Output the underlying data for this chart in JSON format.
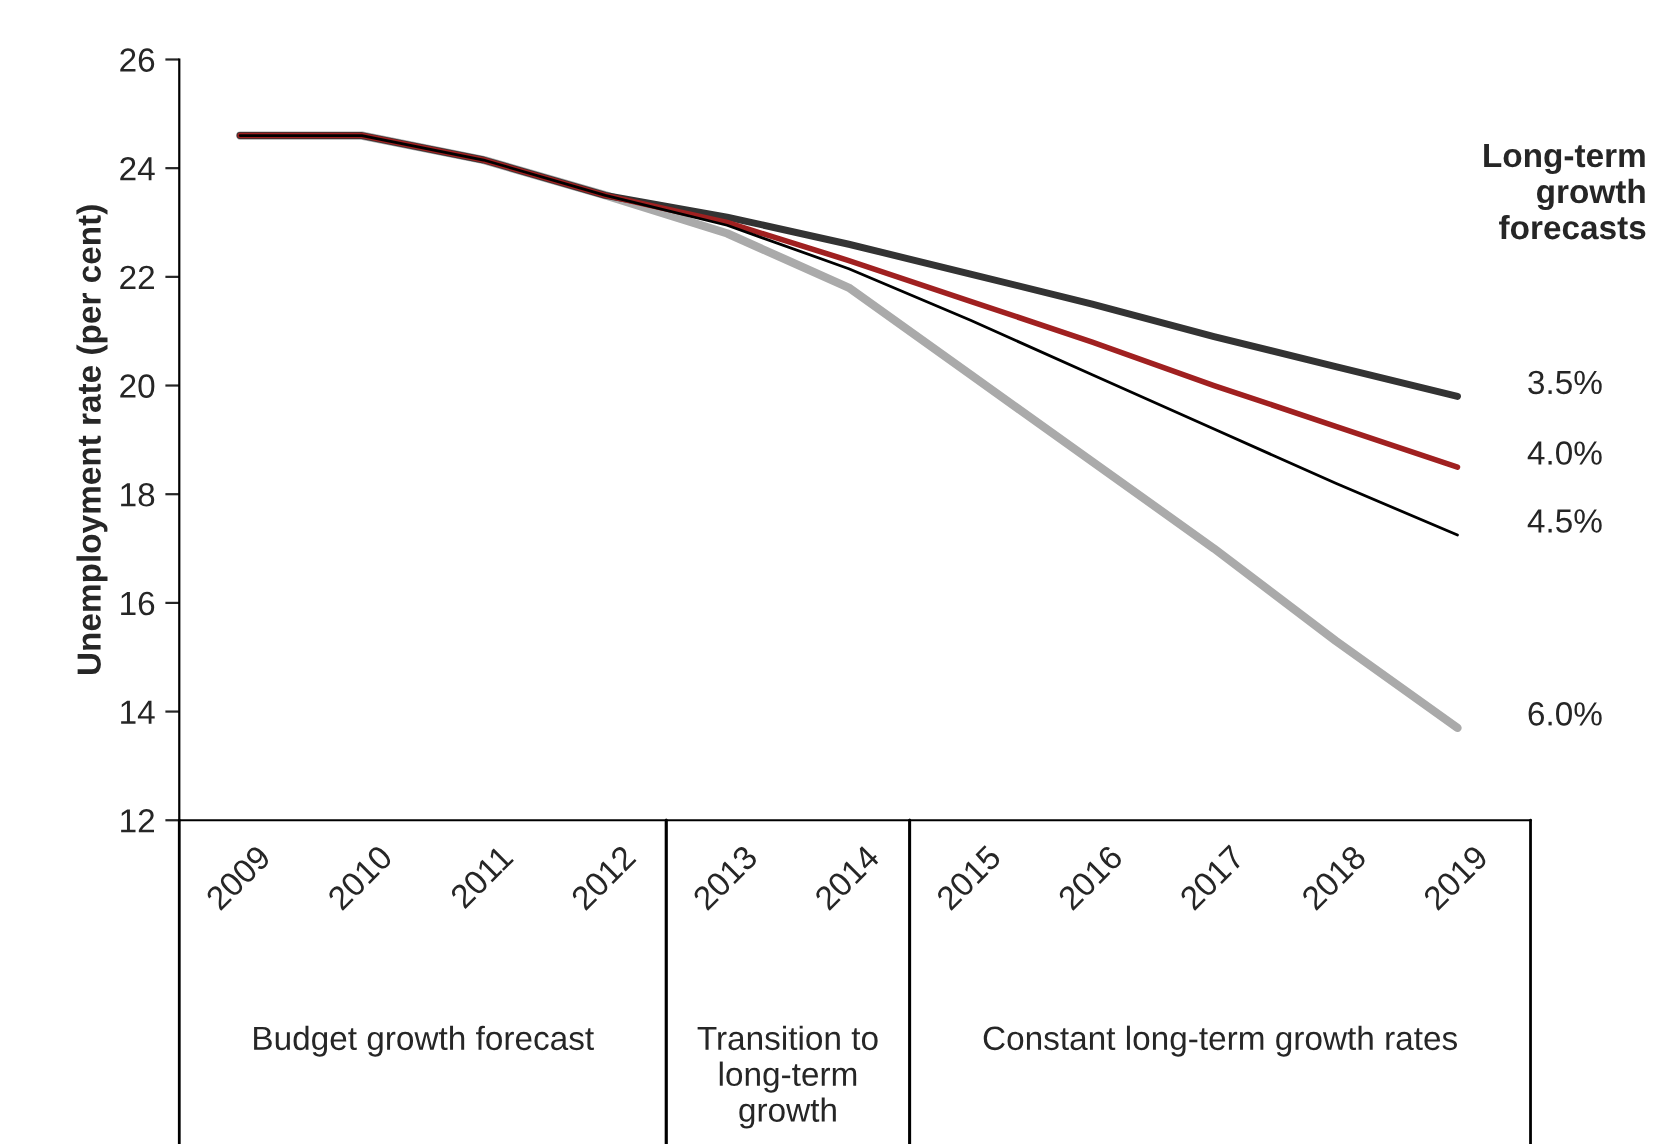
{
  "chart_data": {
    "type": "line",
    "ylabel": "Unemployment rate (per cent)",
    "legend_title": "Long-term growth forecasts",
    "categories": [
      "2009",
      "2010",
      "2011",
      "2012",
      "2013",
      "2014",
      "2015",
      "2016",
      "2017",
      "2018",
      "2019"
    ],
    "series": [
      {
        "name": "3.5%",
        "color": "#333333",
        "values": [
          24.6,
          24.6,
          24.15,
          23.5,
          23.1,
          22.6,
          22.05,
          21.5,
          20.9,
          20.35,
          19.8
        ]
      },
      {
        "name": "4.0%",
        "color": "#a02020",
        "values": [
          24.6,
          24.6,
          24.15,
          23.5,
          23.0,
          22.3,
          21.55,
          20.8,
          20.0,
          19.25,
          18.5
        ]
      },
      {
        "name": "4.5%",
        "color": "#000000",
        "values": [
          24.6,
          24.6,
          24.15,
          23.5,
          22.95,
          22.15,
          21.2,
          20.2,
          19.2,
          18.2,
          17.25
        ]
      },
      {
        "name": "6.0%",
        "color": "#aaaaaa",
        "values": [
          24.6,
          24.6,
          24.15,
          23.5,
          22.8,
          21.8,
          20.2,
          18.6,
          17.0,
          15.3,
          13.7
        ]
      }
    ],
    "ylim": [
      12,
      26
    ],
    "yticks": [
      12,
      14,
      16,
      18,
      20,
      22,
      24,
      26
    ],
    "grid": false,
    "legend": "right",
    "annotations": [
      "Budget growth forecast",
      "Transition to long-term growth",
      "Constant long-term growth rates"
    ]
  }
}
